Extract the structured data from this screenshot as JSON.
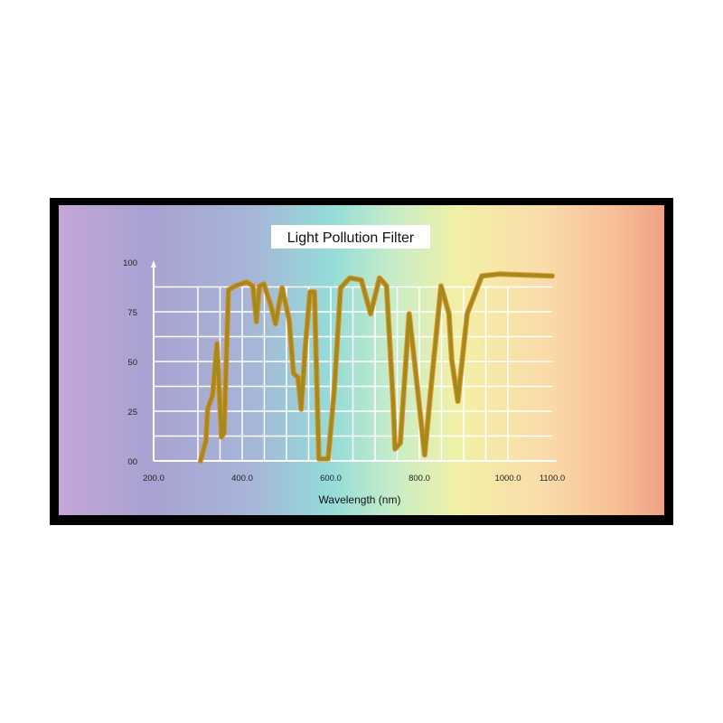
{
  "chart_data": {
    "type": "line",
    "title": "Light Pollution Filter",
    "xlabel": "Wavelength (nm)",
    "ylabel": "",
    "xlim": [
      200,
      1100
    ],
    "ylim": [
      0,
      100
    ],
    "x_ticks": [
      200,
      400,
      600,
      800,
      1000,
      1100
    ],
    "x_tick_labels": [
      "200.0",
      "400.0",
      "600.0",
      "800.0",
      "1000.0",
      "1100.0"
    ],
    "y_ticks": [
      0,
      25,
      50,
      75,
      100
    ],
    "y_tick_labels": [
      "00",
      "25",
      "50",
      "75",
      "100"
    ],
    "grid": true,
    "line_color": "#a08c1e",
    "highlight_color": "#f08a20",
    "background": "rainbow spectrum gradient (violet to salmon)",
    "series": [
      {
        "x": [
          306,
          318,
          322,
          333,
          343,
          353,
          359,
          369,
          384,
          410,
          424,
          432,
          439,
          449,
          465,
          475,
          490,
          506,
          516,
          526,
          533,
          543,
          553,
          563,
          573,
          594,
          608,
          622,
          643,
          669,
          690,
          710,
          726,
          741,
          745,
          757,
          777,
          792,
          812,
          826,
          849,
          867,
          873,
          887,
          908,
          941,
          981,
          1100
        ],
        "y": [
          0,
          10,
          26,
          33,
          59,
          12,
          14,
          86,
          88,
          90,
          88,
          70,
          88,
          89,
          78,
          69,
          87,
          71,
          44,
          42,
          26,
          59,
          85,
          85,
          1,
          1,
          36,
          87,
          92,
          91,
          74,
          92,
          88,
          29,
          6,
          9,
          74,
          44,
          3,
          36,
          88,
          74,
          51,
          30,
          74,
          93,
          94,
          93
        ]
      }
    ]
  }
}
